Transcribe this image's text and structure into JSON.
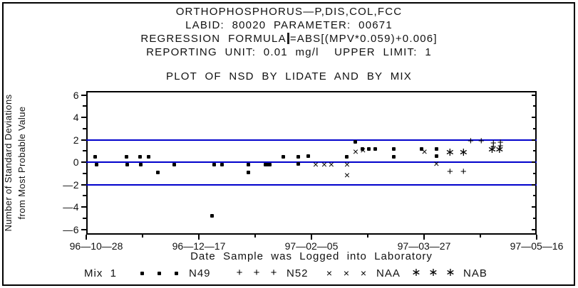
{
  "header": {
    "line1": "ORTHOPHOSPHORUS—P,DIS,COL,FCC",
    "line2": "LABID:  80020  PARAMETER:  00671",
    "line3_left": "REGRESSION  FORMULA",
    "line3_right": "=ABS[(MPV*0.059)+0.006]",
    "line4": "REPORTING  UNIT:  0.01  mg/l    UPPER  LIMIT:  1"
  },
  "chart_data": {
    "type": "scatter",
    "title": "PLOT  OF  NSD  BY  LIDATE  AND  BY  MIX",
    "xlabel": "Date  Sample  was  Logged  into  Laboratory",
    "ylabel_line1": "Number of Standard Deviations",
    "ylabel_line2": "from Most Probable Value",
    "x_axis": {
      "tick_labels": [
        "96—10—28",
        "96—12—17",
        "97—02—05",
        "97—03—27",
        "97—05—16"
      ],
      "tick_days": [
        0,
        50,
        100,
        150,
        200
      ],
      "minor_tick_days": [
        25,
        75,
        125,
        175
      ],
      "range_days": [
        0,
        200
      ]
    },
    "y_axis": {
      "tick_labels": [
        "6",
        "4",
        "2",
        "0",
        "—2",
        "—4",
        "—6"
      ],
      "tick_values": [
        6,
        4,
        2,
        0,
        -2,
        -4,
        -6
      ],
      "minor_tick_values": [
        5,
        3,
        1,
        -1,
        -3,
        -5
      ],
      "ylim": [
        -6.5,
        6.35
      ]
    },
    "reference_lines": {
      "values": [
        2,
        0,
        -2
      ],
      "color": "#0000cc"
    },
    "series": [
      {
        "name": "N49",
        "marker": "square",
        "points": [
          [
            4,
            0.5
          ],
          [
            4.5,
            -0.2
          ],
          [
            18,
            0.5
          ],
          [
            18.3,
            -0.2
          ],
          [
            24,
            0.5
          ],
          [
            24.3,
            -0.2
          ],
          [
            27.8,
            0.5
          ],
          [
            31.9,
            -0.9
          ],
          [
            39.1,
            -0.2
          ],
          [
            55.8,
            -4.8
          ],
          [
            56.8,
            -0.2
          ],
          [
            60.3,
            -0.2
          ],
          [
            71.9,
            -0.2
          ],
          [
            71.9,
            -0.9
          ],
          [
            79.5,
            -0.2
          ],
          [
            80.4,
            -0.2
          ],
          [
            81.4,
            -0.2
          ],
          [
            87.4,
            0.5
          ],
          [
            94.3,
            0.5
          ],
          [
            94.3,
            -0.15
          ],
          [
            98.7,
            0.55
          ],
          [
            115.8,
            0.5
          ],
          [
            119.6,
            1.8
          ],
          [
            122.7,
            1.15
          ],
          [
            125.6,
            1.15
          ],
          [
            128.4,
            1.15
          ],
          [
            136.6,
            1.15
          ],
          [
            136.6,
            0.5
          ],
          [
            148.9,
            1.15
          ],
          [
            155.5,
            1.2
          ],
          [
            155.5,
            0.55
          ]
        ]
      },
      {
        "name": "N52",
        "marker": "plus",
        "points": [
          [
            161.5,
            -0.9
          ],
          [
            167.5,
            -0.9
          ],
          [
            170.7,
            1.85
          ],
          [
            175.4,
            1.85
          ],
          [
            180.8,
            1.65
          ],
          [
            180.8,
            1.35
          ],
          [
            183.9,
            1.7
          ],
          [
            183.9,
            1.4
          ]
        ]
      },
      {
        "name": "NAA",
        "marker": "cross",
        "points": [
          [
            101.9,
            -0.2
          ],
          [
            105.7,
            -0.2
          ],
          [
            108.8,
            -0.2
          ],
          [
            115.8,
            -0.2
          ],
          [
            115.8,
            -1.15
          ],
          [
            119.6,
            0.95
          ],
          [
            122.9,
            1.05
          ],
          [
            150.2,
            0.95
          ],
          [
            155.5,
            -0.15
          ]
        ]
      },
      {
        "name": "NAB",
        "marker": "asterisk",
        "points": [
          [
            161.5,
            0.8
          ],
          [
            167.5,
            0.8
          ],
          [
            180.2,
            1.1
          ],
          [
            183.5,
            1.1
          ]
        ]
      }
    ],
    "legend": {
      "title": "Mix  1",
      "entries": [
        {
          "label": "N49",
          "marker": "square"
        },
        {
          "label": "N52",
          "marker": "plus"
        },
        {
          "label": "NAA",
          "marker": "cross"
        },
        {
          "label": "NAB",
          "marker": "asterisk"
        }
      ]
    }
  }
}
